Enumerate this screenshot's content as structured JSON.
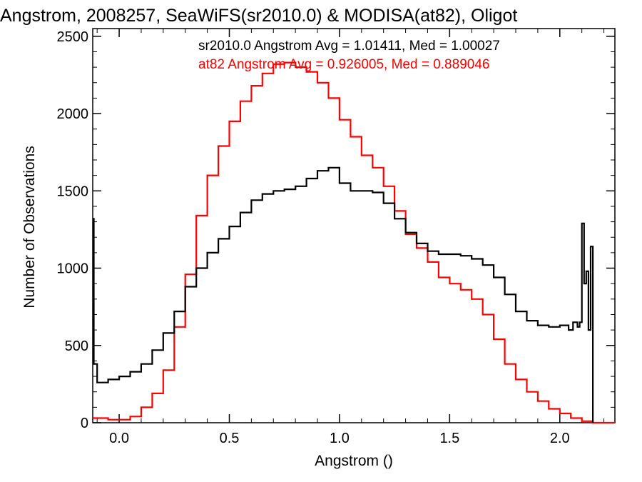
{
  "chart_data": {
    "type": "line",
    "title": "Angstrom, 2008257, SeaWiFS(sr2010.0) & MODISA(at82), Oligot",
    "xlabel": "Angstrom ()",
    "ylabel": "Number of Observations",
    "xlim": [
      -0.12,
      2.25
    ],
    "ylim": [
      0,
      2550
    ],
    "xticks": [
      0.0,
      0.5,
      1.0,
      1.5,
      2.0
    ],
    "xtick_labels": [
      "0.0",
      "0.5",
      "1.0",
      "1.5",
      "2.0"
    ],
    "yticks": [
      0,
      500,
      1000,
      1500,
      2000,
      2500
    ],
    "ytick_labels": [
      "0",
      "500",
      "1000",
      "1500",
      "2000",
      "2500"
    ],
    "legend_position": "top-right",
    "grid": false,
    "series": [
      {
        "name": "sr2010.0",
        "color": "#000000",
        "legend_text": "sr2010.0 Angstrom Avg = 1.01411, Med = 1.00027",
        "points": [
          [
            -0.12,
            1320
          ],
          [
            -0.115,
            380
          ],
          [
            -0.1,
            260
          ],
          [
            -0.05,
            280
          ],
          [
            0,
            300
          ],
          [
            0.05,
            330
          ],
          [
            0.1,
            380
          ],
          [
            0.15,
            470
          ],
          [
            0.2,
            580
          ],
          [
            0.25,
            720
          ],
          [
            0.3,
            880
          ],
          [
            0.35,
            1000
          ],
          [
            0.4,
            1100
          ],
          [
            0.45,
            1190
          ],
          [
            0.5,
            1270
          ],
          [
            0.55,
            1360
          ],
          [
            0.6,
            1440
          ],
          [
            0.65,
            1480
          ],
          [
            0.7,
            1500
          ],
          [
            0.75,
            1510
          ],
          [
            0.8,
            1530
          ],
          [
            0.85,
            1580
          ],
          [
            0.9,
            1630
          ],
          [
            0.95,
            1650
          ],
          [
            1.0,
            1550
          ],
          [
            1.05,
            1500
          ],
          [
            1.1,
            1500
          ],
          [
            1.15,
            1490
          ],
          [
            1.2,
            1420
          ],
          [
            1.25,
            1320
          ],
          [
            1.3,
            1230
          ],
          [
            1.35,
            1160
          ],
          [
            1.4,
            1110
          ],
          [
            1.45,
            1090
          ],
          [
            1.5,
            1090
          ],
          [
            1.55,
            1080
          ],
          [
            1.6,
            1060
          ],
          [
            1.65,
            1020
          ],
          [
            1.7,
            940
          ],
          [
            1.75,
            830
          ],
          [
            1.8,
            720
          ],
          [
            1.85,
            660
          ],
          [
            1.9,
            630
          ],
          [
            1.95,
            620
          ],
          [
            2.0,
            630
          ],
          [
            2.04,
            600
          ],
          [
            2.06,
            650
          ],
          [
            2.08,
            620
          ],
          [
            2.09,
            650
          ],
          [
            2.1,
            1290
          ],
          [
            2.11,
            900
          ],
          [
            2.12,
            980
          ],
          [
            2.13,
            600
          ],
          [
            2.14,
            1140
          ],
          [
            2.15,
            0
          ]
        ]
      },
      {
        "name": "at82",
        "color": "#ff0000",
        "legend_text": "at82 Angstrom Avg = 0.926005, Med = 0.889046",
        "points": [
          [
            -0.12,
            30
          ],
          [
            -0.05,
            20
          ],
          [
            0,
            20
          ],
          [
            0.05,
            40
          ],
          [
            0.1,
            100
          ],
          [
            0.15,
            190
          ],
          [
            0.2,
            340
          ],
          [
            0.25,
            620
          ],
          [
            0.3,
            960
          ],
          [
            0.35,
            1340
          ],
          [
            0.4,
            1600
          ],
          [
            0.45,
            1790
          ],
          [
            0.5,
            1950
          ],
          [
            0.55,
            2080
          ],
          [
            0.6,
            2180
          ],
          [
            0.65,
            2260
          ],
          [
            0.7,
            2320
          ],
          [
            0.75,
            2330
          ],
          [
            0.8,
            2300
          ],
          [
            0.85,
            2270
          ],
          [
            0.9,
            2200
          ],
          [
            0.95,
            2100
          ],
          [
            1.0,
            1960
          ],
          [
            1.05,
            1850
          ],
          [
            1.1,
            1730
          ],
          [
            1.15,
            1650
          ],
          [
            1.2,
            1530
          ],
          [
            1.25,
            1370
          ],
          [
            1.3,
            1220
          ],
          [
            1.35,
            1130
          ],
          [
            1.4,
            1040
          ],
          [
            1.45,
            940
          ],
          [
            1.5,
            900
          ],
          [
            1.55,
            860
          ],
          [
            1.6,
            800
          ],
          [
            1.65,
            700
          ],
          [
            1.7,
            540
          ],
          [
            1.75,
            380
          ],
          [
            1.8,
            280
          ],
          [
            1.85,
            200
          ],
          [
            1.9,
            140
          ],
          [
            1.95,
            90
          ],
          [
            2.0,
            60
          ],
          [
            2.05,
            30
          ],
          [
            2.1,
            10
          ],
          [
            2.15,
            0
          ],
          [
            2.25,
            0
          ]
        ]
      }
    ]
  }
}
